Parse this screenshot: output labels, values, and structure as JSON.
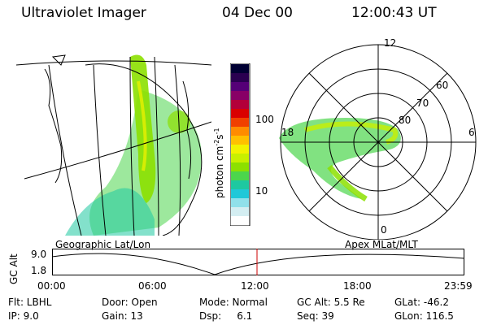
{
  "header": {
    "title": "Ultraviolet Imager",
    "date": "04 Dec 00",
    "time": "12:00:43 UT"
  },
  "colorbar": {
    "unit": "photon cm",
    "unit_exp1": "-2",
    "unit_mid": "s",
    "unit_exp2": "-1",
    "ticks": [
      {
        "label": "100",
        "value": 100
      },
      {
        "label": "10",
        "value": 10
      }
    ],
    "colors": [
      "#000033",
      "#2a0050",
      "#550077",
      "#880066",
      "#b3003a",
      "#d90000",
      "#f04000",
      "#ff8c00",
      "#ffc000",
      "#f2f200",
      "#c8f000",
      "#8ce000",
      "#4cd64c",
      "#1ec8a0",
      "#20c8d8",
      "#90e0ea",
      "#d4eef2",
      "#ffffff"
    ]
  },
  "polar_plot": {
    "labels": [
      {
        "text": "12",
        "pos": "top"
      },
      {
        "text": "18",
        "pos": "left"
      },
      {
        "text": "6",
        "pos": "right"
      },
      {
        "text": "0",
        "pos": "bottom"
      },
      {
        "text": "60",
        "pos": "ring60"
      },
      {
        "text": "70",
        "pos": "ring70"
      },
      {
        "text": "80",
        "pos": "ring80"
      }
    ]
  },
  "map_labels": {
    "left": "Geographic Lat/Lon",
    "right": "Apex MLat/MLT"
  },
  "altitude_strip": {
    "axis_label": "GC Alt",
    "y_ticks": [
      "9.0",
      "1.8"
    ],
    "x_ticks": [
      "00:00",
      "06:00",
      "12:00",
      "18:00",
      "23:59"
    ],
    "marker_time": "12:00:43",
    "marker_color": "#cc0000"
  },
  "footer": {
    "col1": [
      "Flt: LBHL",
      "IP: 9.0"
    ],
    "col2": [
      "Door: Open",
      "Gain: 13"
    ],
    "col3": [
      "Mode: Normal",
      "Dsp:     6.1"
    ],
    "col4": [
      "GC Alt: 5.5 Re",
      "Seq: 39"
    ],
    "col5": [
      "GLat: -46.2",
      "GLon: 116.5"
    ]
  },
  "colors": {
    "aurora_green": "#8ce000",
    "aurora_yellow": "#e8f000",
    "aurora_cyan": "#1ec8a0"
  }
}
